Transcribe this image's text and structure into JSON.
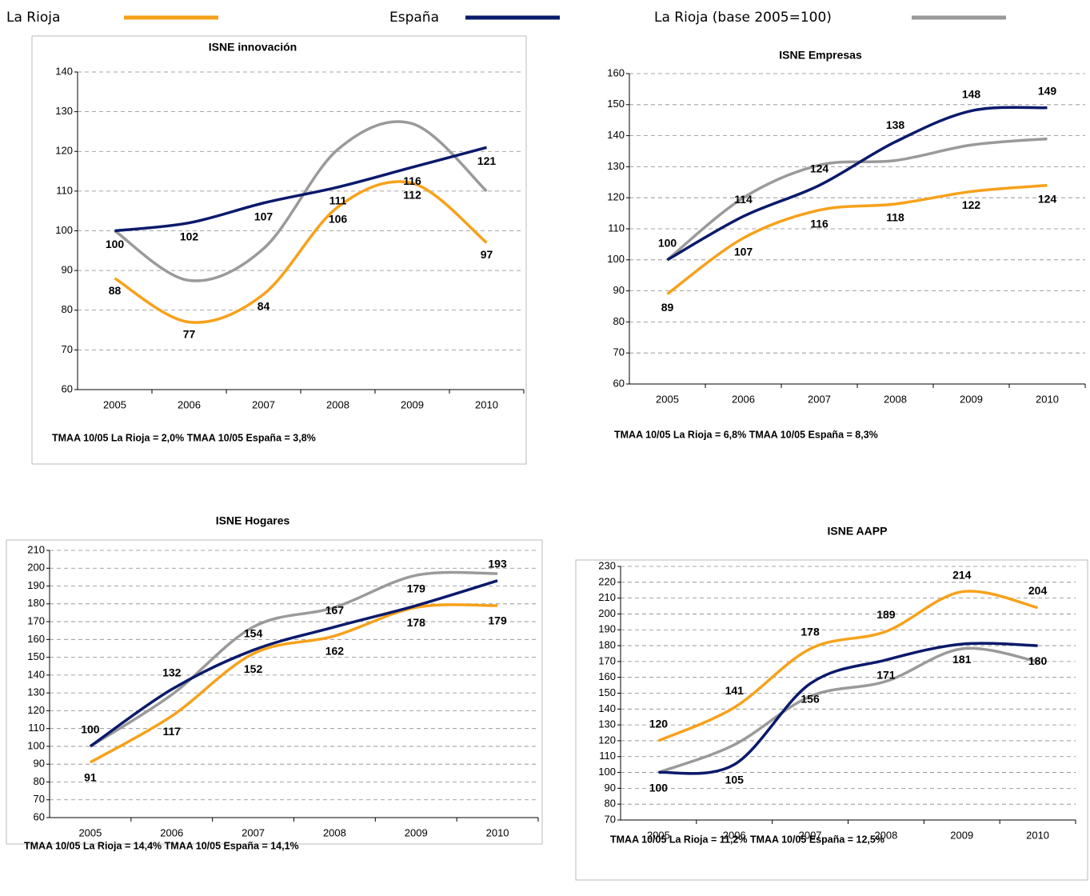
{
  "legend": [
    {
      "name": "La Rioja",
      "color": "#f7a11a"
    },
    {
      "name": "España",
      "color": "#0a1a6b"
    },
    {
      "name": "La Rioja (base 2005=100)",
      "color": "#9a9a9a"
    }
  ],
  "chart_data": [
    {
      "type": "line",
      "title": "ISNE innovación",
      "note": "TMAA  10/05 La Rioja = 2,0%   TMAA 10/05 España = 3,8%",
      "categories": [
        "2005",
        "2006",
        "2007",
        "2008",
        "2009",
        "2010"
      ],
      "ylim": [
        60,
        140
      ],
      "yticks": [
        60,
        70,
        80,
        90,
        100,
        110,
        120,
        130,
        140
      ],
      "grid": true,
      "series": [
        {
          "values": [
            88,
            77,
            84,
            106,
            112,
            97
          ],
          "data_labels": true
        },
        {
          "values": [
            100,
            102,
            107,
            111,
            116,
            121
          ],
          "data_labels": true
        },
        {
          "values": [
            100,
            87.5,
            95.5,
            120.5,
            127,
            110
          ],
          "data_labels": false
        }
      ]
    },
    {
      "type": "line",
      "title": "ISNE Empresas",
      "note": "TMAA 10/05 La Rioja = 6,8%   TMAA 10/05 España = 8,3%",
      "categories": [
        "2005",
        "2006",
        "2007",
        "2008",
        "2009",
        "2010"
      ],
      "ylim": [
        60,
        160
      ],
      "yticks": [
        60,
        70,
        80,
        90,
        100,
        110,
        120,
        130,
        140,
        150,
        160
      ],
      "grid": true,
      "series": [
        {
          "values": [
            89,
            107,
            116,
            118,
            122,
            124
          ],
          "data_labels": true
        },
        {
          "values": [
            100,
            114,
            124,
            138,
            148,
            149
          ],
          "data_labels": true
        },
        {
          "values": [
            100,
            120,
            130.5,
            132,
            137,
            139
          ],
          "data_labels": false
        }
      ]
    },
    {
      "type": "line",
      "title": "ISNE Hogares",
      "note": "TMAA 10/05 La Rioja = 14,4%    TMAA 10/05 España = 14,1%",
      "categories": [
        "2005",
        "2006",
        "2007",
        "2008",
        "2009",
        "2010"
      ],
      "ylim": [
        60,
        210
      ],
      "yticks": [
        60,
        70,
        80,
        90,
        100,
        110,
        120,
        130,
        140,
        150,
        160,
        170,
        180,
        190,
        200,
        210
      ],
      "grid": true,
      "series": [
        {
          "values": [
            91,
            117,
            152,
            162,
            178,
            179
          ],
          "data_labels": true
        },
        {
          "values": [
            100,
            132,
            154,
            167,
            179,
            193
          ],
          "data_labels": true
        },
        {
          "values": [
            100,
            129,
            167,
            178,
            196,
            197
          ],
          "data_labels": false
        }
      ]
    },
    {
      "type": "line",
      "title": "ISNE AAPP",
      "note": "TMAA 10/05 La Rioja = 11,2%   TMAA 10/05 España = 12,5%",
      "categories": [
        "2005",
        "2006",
        "2007",
        "2008",
        "2009",
        "2010"
      ],
      "ylim": [
        70,
        230
      ],
      "yticks": [
        70,
        80,
        90,
        100,
        110,
        120,
        130,
        140,
        150,
        160,
        170,
        180,
        190,
        200,
        210,
        220,
        230
      ],
      "grid": true,
      "series": [
        {
          "values": [
            120,
            141,
            178,
            189,
            214,
            204
          ],
          "data_labels": true
        },
        {
          "values": [
            100,
            105,
            156,
            171,
            181,
            180
          ],
          "data_labels": true
        },
        {
          "values": [
            100,
            117.5,
            148,
            157.5,
            178,
            170
          ],
          "data_labels": false
        }
      ]
    }
  ]
}
